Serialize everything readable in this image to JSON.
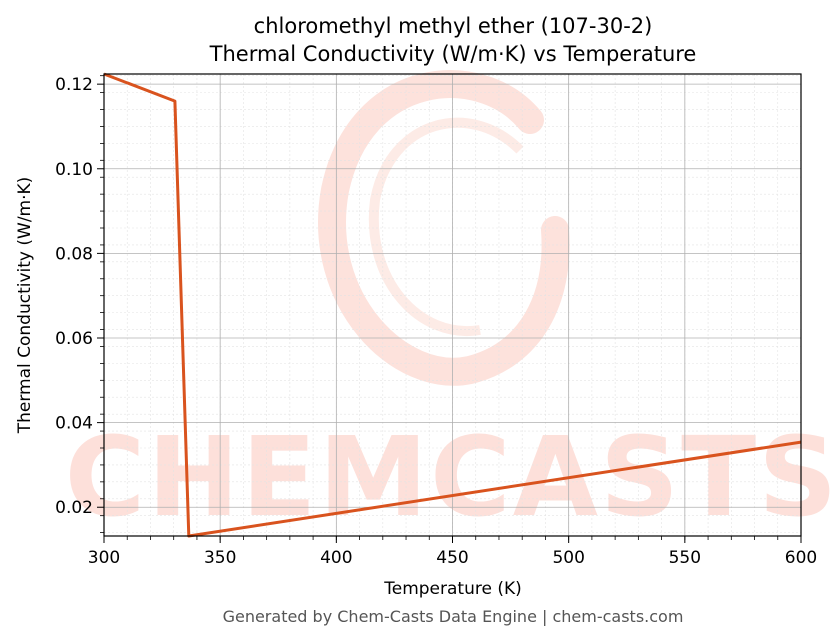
{
  "chart_data": {
    "type": "line",
    "title_line1": "chloromethyl methyl ether (107-30-2)",
    "title_line2": "Thermal Conductivity (W/m·K) vs Temperature",
    "xlabel": "Temperature (K)",
    "ylabel": "Thermal Conductivity (W/m·K)",
    "xlim": [
      300,
      600
    ],
    "ylim": [
      0.0132,
      0.1224
    ],
    "xticks": [
      300,
      350,
      400,
      450,
      500,
      550,
      600
    ],
    "yticks": [
      0.02,
      0.04,
      0.06,
      0.08,
      0.1,
      0.12
    ],
    "ytick_labels": [
      "0.02",
      "0.04",
      "0.06",
      "0.08",
      "0.10",
      "0.12"
    ],
    "grid": true,
    "line_color": "#d9531e",
    "series": [
      {
        "x": [
          300,
          330.5,
          336.5,
          600
        ],
        "y": [
          0.1224,
          0.116,
          0.0132,
          0.0354
        ]
      }
    ]
  },
  "watermark": {
    "text": "CHEMCASTS",
    "color": "#fcd9d2"
  },
  "footer": "Generated by Chem-Casts Data Engine | chem-casts.com"
}
